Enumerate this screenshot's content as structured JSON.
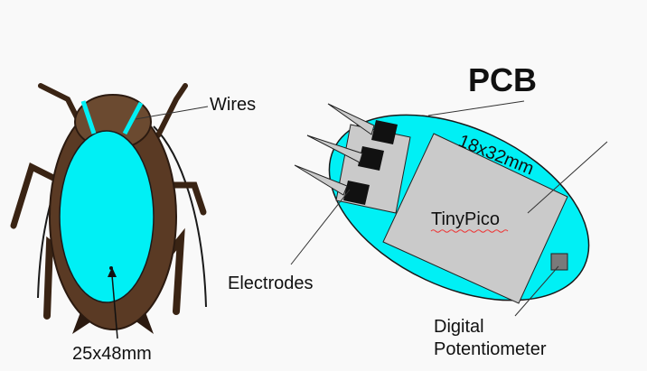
{
  "labels": {
    "pcb_title": "PCB",
    "wires": "Wires",
    "electrodes": "Electrodes",
    "body_size": "25x48mm",
    "board_size": "18x32mm",
    "board_name": "TinyPico",
    "pot_line1": "Digital",
    "pot_line2": "Potentiometer"
  },
  "colors": {
    "cyan": "#00f0f5",
    "roach_body": "#5a3a24",
    "roach_dark": "#2b1a10",
    "board_gray": "#cacaca",
    "electrode_dark": "#111111"
  }
}
